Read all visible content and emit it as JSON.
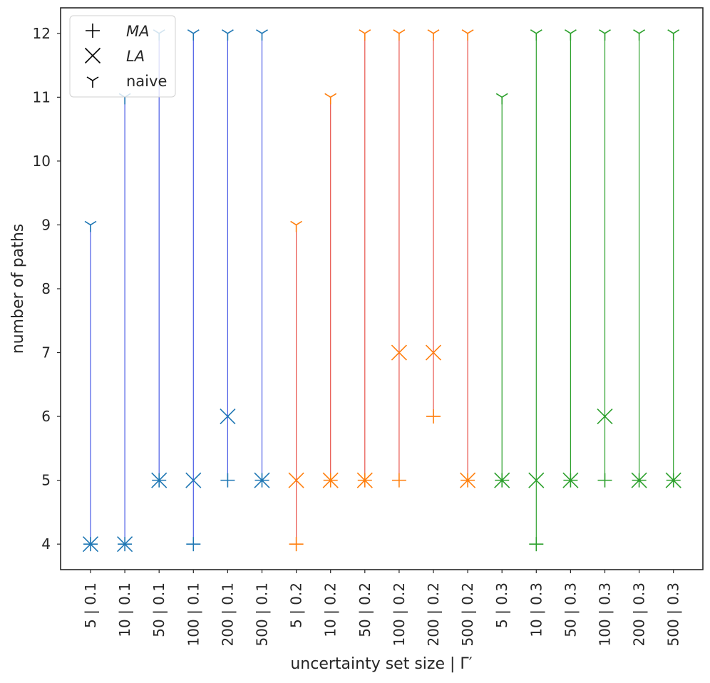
{
  "chart_data": {
    "type": "scatter",
    "title": "",
    "xlabel": "uncertainty set size | Γ′",
    "ylabel": "number of paths",
    "ylim": [
      3.6,
      12.4
    ],
    "yticks": [
      4,
      5,
      6,
      7,
      8,
      9,
      10,
      11,
      12
    ],
    "grid": false,
    "legend": {
      "location": "top-left",
      "entries": [
        {
          "marker": "plus",
          "label": "MA"
        },
        {
          "marker": "x",
          "label": "LA"
        },
        {
          "marker": "tri-down",
          "label": "naive"
        }
      ]
    },
    "categories": [
      "5 | 0.1",
      "10 | 0.1",
      "50 | 0.1",
      "100 | 0.1",
      "200 | 0.1",
      "500 | 0.1",
      "5 | 0.2",
      "10 | 0.2",
      "50 | 0.2",
      "100 | 0.2",
      "200 | 0.2",
      "500 | 0.2",
      "5 | 0.3",
      "10 | 0.3",
      "50 | 0.3",
      "100 | 0.3",
      "200 | 0.3",
      "500 | 0.3"
    ],
    "group_colors": {
      "0.1": {
        "marker": "#1f77b4",
        "line": "#4a5be6"
      },
      "0.2": {
        "marker": "#ff7f0e",
        "line": "#e8524a"
      },
      "0.3": {
        "marker": "#2ca02c",
        "line": "#2ca02c"
      }
    },
    "series": [
      {
        "name": "MA",
        "marker": "plus",
        "values": [
          4,
          4,
          5,
          4,
          5,
          5,
          4,
          5,
          5,
          5,
          6,
          5,
          5,
          4,
          5,
          5,
          5,
          5
        ]
      },
      {
        "name": "LA",
        "marker": "x",
        "values": [
          4,
          4,
          5,
          5,
          6,
          5,
          5,
          5,
          5,
          7,
          7,
          5,
          5,
          5,
          5,
          6,
          5,
          5
        ]
      },
      {
        "name": "naive",
        "marker": "tri-down",
        "values": [
          9,
          11,
          12,
          12,
          12,
          12,
          9,
          11,
          12,
          12,
          12,
          12,
          11,
          12,
          12,
          12,
          12,
          12
        ]
      }
    ]
  }
}
